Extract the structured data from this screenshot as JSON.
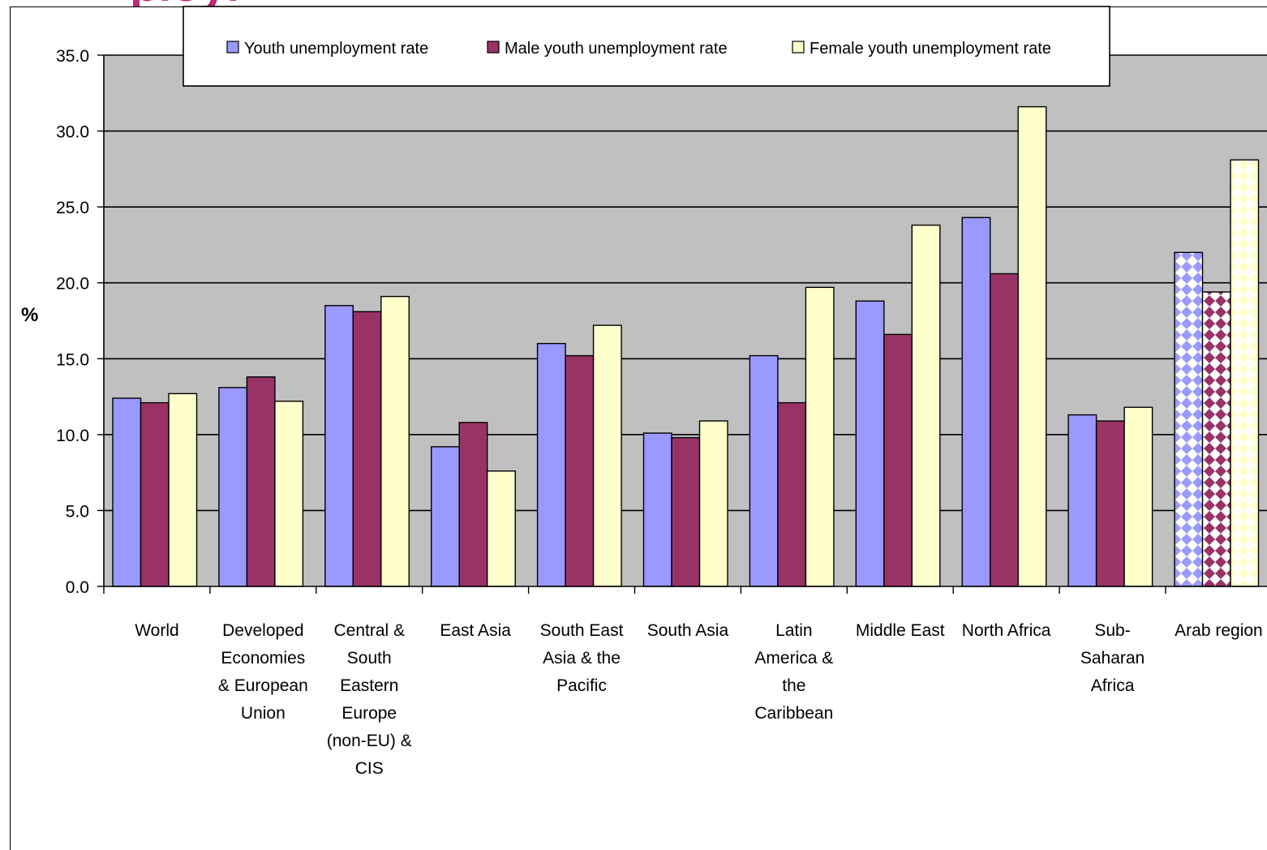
{
  "title_fragment": "ployi",
  "chart_data": {
    "type": "bar",
    "ylabel": "%",
    "ylim": [
      0,
      35
    ],
    "yticks": [
      "0.0",
      "5.0",
      "10.0",
      "15.0",
      "20.0",
      "25.0",
      "30.0",
      "35.0"
    ],
    "grid": true,
    "legend_position": "top",
    "categories": [
      [
        "World"
      ],
      [
        "Developed",
        "Economies",
        "& European",
        "Union"
      ],
      [
        "Central &",
        "South",
        "Eastern",
        "Europe",
        "(non-EU) &",
        "CIS"
      ],
      [
        "East Asia"
      ],
      [
        "South East",
        "Asia & the",
        "Pacific"
      ],
      [
        "South Asia"
      ],
      [
        "Latin",
        "America &",
        "the",
        "Caribbean"
      ],
      [
        "Middle East"
      ],
      [
        "North Africa"
      ],
      [
        "Sub-",
        "Saharan",
        "Africa"
      ],
      [
        "Arab region"
      ]
    ],
    "series": [
      {
        "name": "Youth unemployment rate",
        "color": "#9999ff",
        "values": [
          12.4,
          13.1,
          18.5,
          9.2,
          16.0,
          10.1,
          15.2,
          18.8,
          24.3,
          11.3,
          22.0
        ]
      },
      {
        "name": "Male youth unemployment rate",
        "color": "#993366",
        "values": [
          12.1,
          13.8,
          18.1,
          10.8,
          15.2,
          9.8,
          12.1,
          16.6,
          20.6,
          10.9,
          19.4
        ]
      },
      {
        "name": "Female youth unemployment rate",
        "color": "#ffffcc",
        "values": [
          12.7,
          12.2,
          19.1,
          7.6,
          17.2,
          10.9,
          19.7,
          23.8,
          31.6,
          11.8,
          28.1
        ]
      }
    ],
    "patterned_category": "Arab region",
    "plot_background": "#c0c0c0"
  }
}
